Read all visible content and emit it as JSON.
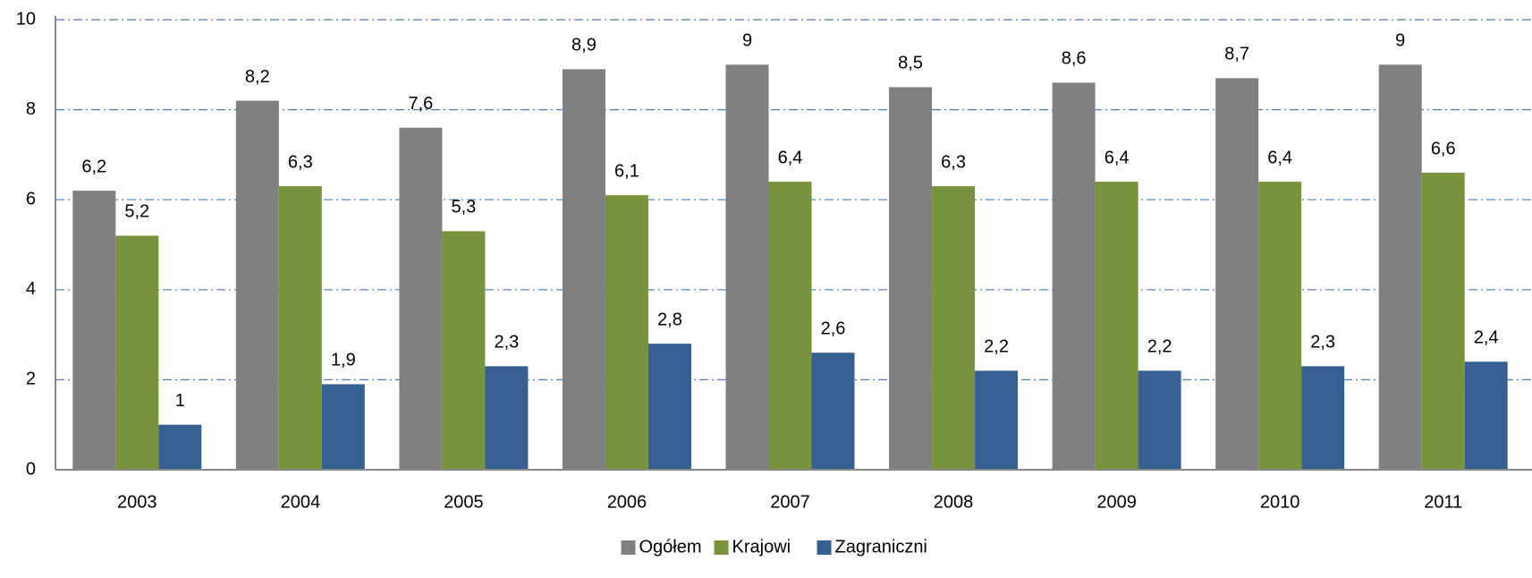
{
  "chart_data": {
    "type": "bar",
    "categories": [
      "2003",
      "2004",
      "2005",
      "2006",
      "2007",
      "2008",
      "2009",
      "2010",
      "2011"
    ],
    "series": [
      {
        "name": "Ogółem",
        "color": "#808080",
        "values": [
          6.2,
          8.2,
          7.6,
          8.9,
          9,
          8.5,
          8.6,
          8.7,
          9
        ],
        "value_labels": [
          "6,2",
          "8,2",
          "7,6",
          "8,9",
          "9",
          "8,5",
          "8,6",
          "8,7",
          "9"
        ]
      },
      {
        "name": "Krajowi",
        "color": "#77933c",
        "values": [
          5.2,
          6.3,
          5.3,
          6.1,
          6.4,
          6.3,
          6.4,
          6.4,
          6.6
        ],
        "value_labels": [
          "5,2",
          "6,3",
          "5,3",
          "6,1",
          "6,4",
          "6,3",
          "6,4",
          "6,4",
          "6,6"
        ]
      },
      {
        "name": "Zagraniczni",
        "color": "#376092",
        "values": [
          1,
          1.9,
          2.3,
          2.8,
          2.6,
          2.2,
          2.2,
          2.3,
          2.4
        ],
        "value_labels": [
          "1",
          "1,9",
          "2,3",
          "2,8",
          "2,6",
          "2,2",
          "2,2",
          "2,3",
          "2,4"
        ]
      }
    ],
    "ylim": [
      0,
      10
    ],
    "yticks": [
      0,
      2,
      4,
      6,
      8,
      10
    ],
    "grid": true,
    "legend": "bottom"
  }
}
